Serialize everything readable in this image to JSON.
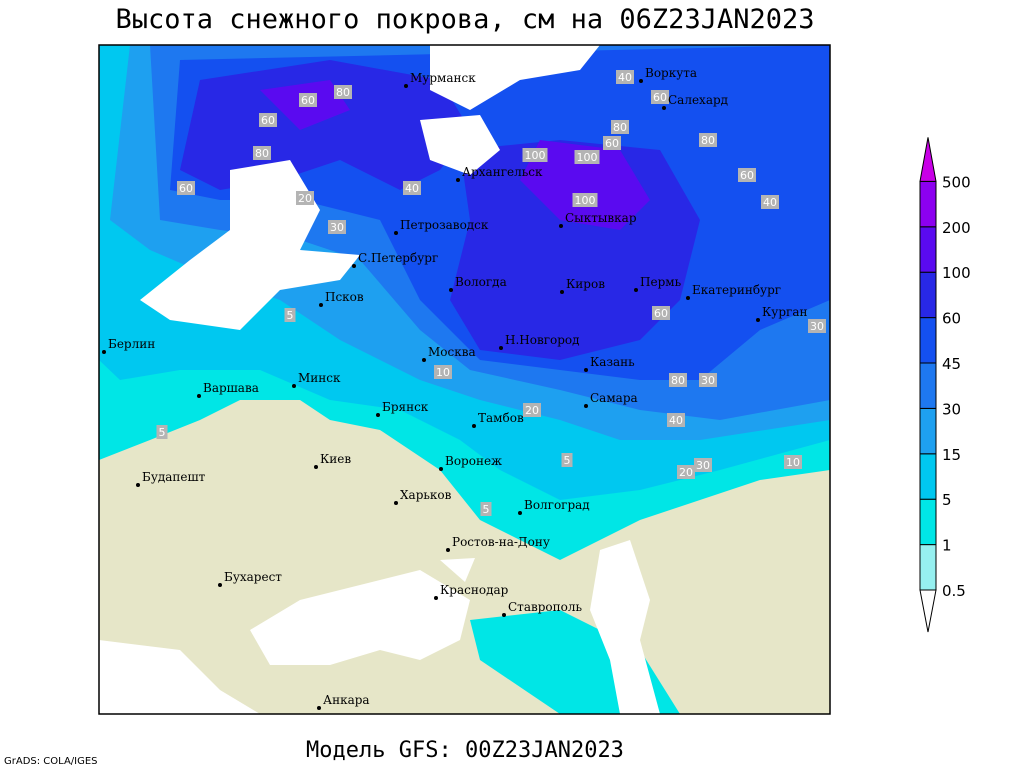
{
  "title": "Высота снежного покрова, см на 06Z23JAN2023",
  "model": "Модель GFS: 00Z23JAN2023",
  "credit": "GrADS: COLA/IGES",
  "legend": {
    "levels": [
      0.5,
      1,
      5,
      15,
      30,
      45,
      60,
      100,
      200,
      500
    ],
    "colors": [
      "#ffffff",
      "#96f0f0",
      "#00e6e6",
      "#00c8f0",
      "#1ea0f0",
      "#1e78f0",
      "#1450f0",
      "#2828e6",
      "#5a0af0",
      "#8c00f0",
      "#c800e6"
    ]
  },
  "cities": [
    "Мурманск",
    "Воркута",
    "Салехард",
    "Архангельск",
    "Петрозаводск",
    "С.Петербург",
    "Сыктывкар",
    "Вологда",
    "Киров",
    "Пермь",
    "Екатеринбург",
    "Курган",
    "Псков",
    "Н.Новгород",
    "Москва",
    "Казань",
    "Берлин",
    "Варшава",
    "Минск",
    "Брянск",
    "Тамбов",
    "Самара",
    "Киев",
    "Воронеж",
    "Будапешт",
    "Харьков",
    "Волгоград",
    "Ростов-на-Дону",
    "Бухарест",
    "Краснодар",
    "Ставрополь",
    "Анкара"
  ],
  "contour_labels": [
    60,
    80,
    60,
    80,
    60,
    20,
    30,
    40,
    100,
    100,
    100,
    80,
    60,
    40,
    60,
    80,
    60,
    40,
    60,
    30,
    80,
    30,
    40,
    20,
    10,
    5,
    5,
    10,
    20,
    30,
    5,
    5
  ]
}
